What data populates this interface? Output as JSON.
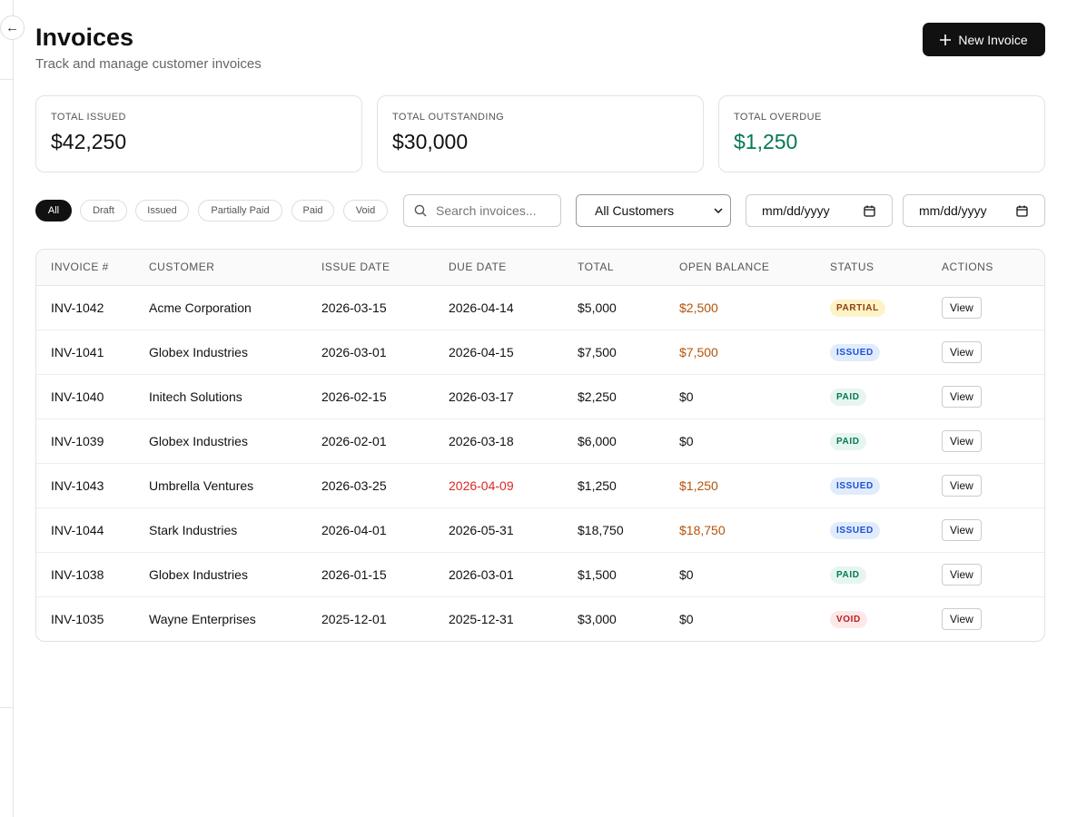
{
  "header": {
    "back_icon": "←",
    "title": "Invoices",
    "subtitle": "Track and manage customer invoices",
    "new_button": "New Invoice"
  },
  "stats": [
    {
      "label": "TOTAL ISSUED",
      "value": "$42,250",
      "color": "#111111"
    },
    {
      "label": "TOTAL OUTSTANDING",
      "value": "$30,000",
      "color": "#111111"
    },
    {
      "label": "TOTAL OVERDUE",
      "value": "$1,250",
      "color": "#047857"
    }
  ],
  "filters": {
    "chips": [
      "All",
      "Draft",
      "Issued",
      "Partially Paid",
      "Paid",
      "Void"
    ],
    "active_chip": 0,
    "search_placeholder": "Search invoices...",
    "customer_select": "All Customers",
    "date_from": "mm/dd/yyyy",
    "date_to": "mm/dd/yyyy"
  },
  "table": {
    "columns": [
      "INVOICE #",
      "CUSTOMER",
      "ISSUE DATE",
      "DUE DATE",
      "TOTAL",
      "OPEN BALANCE",
      "STATUS",
      "ACTIONS"
    ],
    "badge_styles": {
      "PARTIAL": {
        "color": "#92400e",
        "background": "#fef3c7"
      },
      "ISSUED": {
        "color": "#1d4ed8",
        "background": "#e0ecfb"
      },
      "PAID": {
        "color": "#047857",
        "background": "#e6f6ee"
      },
      "VOID": {
        "color": "#b91c1c",
        "background": "#fde8e8"
      }
    },
    "rows": [
      {
        "cells": [
          "INV-1042",
          "Acme Corporation",
          "2026-03-15",
          "2026-04-14",
          "$5,000",
          "$2,500",
          "PARTIAL",
          "View"
        ],
        "due_color": "#111111",
        "balance_color": "#b45309"
      },
      {
        "cells": [
          "INV-1041",
          "Globex Industries",
          "2026-03-01",
          "2026-04-15",
          "$7,500",
          "$7,500",
          "ISSUED",
          "View"
        ],
        "due_color": "#111111",
        "balance_color": "#b45309"
      },
      {
        "cells": [
          "INV-1040",
          "Initech Solutions",
          "2026-02-15",
          "2026-03-17",
          "$2,250",
          "$0",
          "PAID",
          "View"
        ],
        "due_color": "#111111",
        "balance_color": "#111111"
      },
      {
        "cells": [
          "INV-1039",
          "Globex Industries",
          "2026-02-01",
          "2026-03-18",
          "$6,000",
          "$0",
          "PAID",
          "View"
        ],
        "due_color": "#111111",
        "balance_color": "#111111"
      },
      {
        "cells": [
          "INV-1043",
          "Umbrella Ventures",
          "2026-03-25",
          "2026-04-09",
          "$1,250",
          "$1,250",
          "ISSUED",
          "View"
        ],
        "due_color": "#dc2626",
        "balance_color": "#b45309"
      },
      {
        "cells": [
          "INV-1044",
          "Stark Industries",
          "2026-04-01",
          "2026-05-31",
          "$18,750",
          "$18,750",
          "ISSUED",
          "View"
        ],
        "due_color": "#111111",
        "balance_color": "#b45309"
      },
      {
        "cells": [
          "INV-1038",
          "Globex Industries",
          "2026-01-15",
          "2026-03-01",
          "$1,500",
          "$0",
          "PAID",
          "View"
        ],
        "due_color": "#111111",
        "balance_color": "#111111"
      },
      {
        "cells": [
          "INV-1035",
          "Wayne Enterprises",
          "2025-12-01",
          "2025-12-31",
          "$3,000",
          "$0",
          "VOID",
          "View"
        ],
        "due_color": "#111111",
        "balance_color": "#111111"
      }
    ]
  }
}
